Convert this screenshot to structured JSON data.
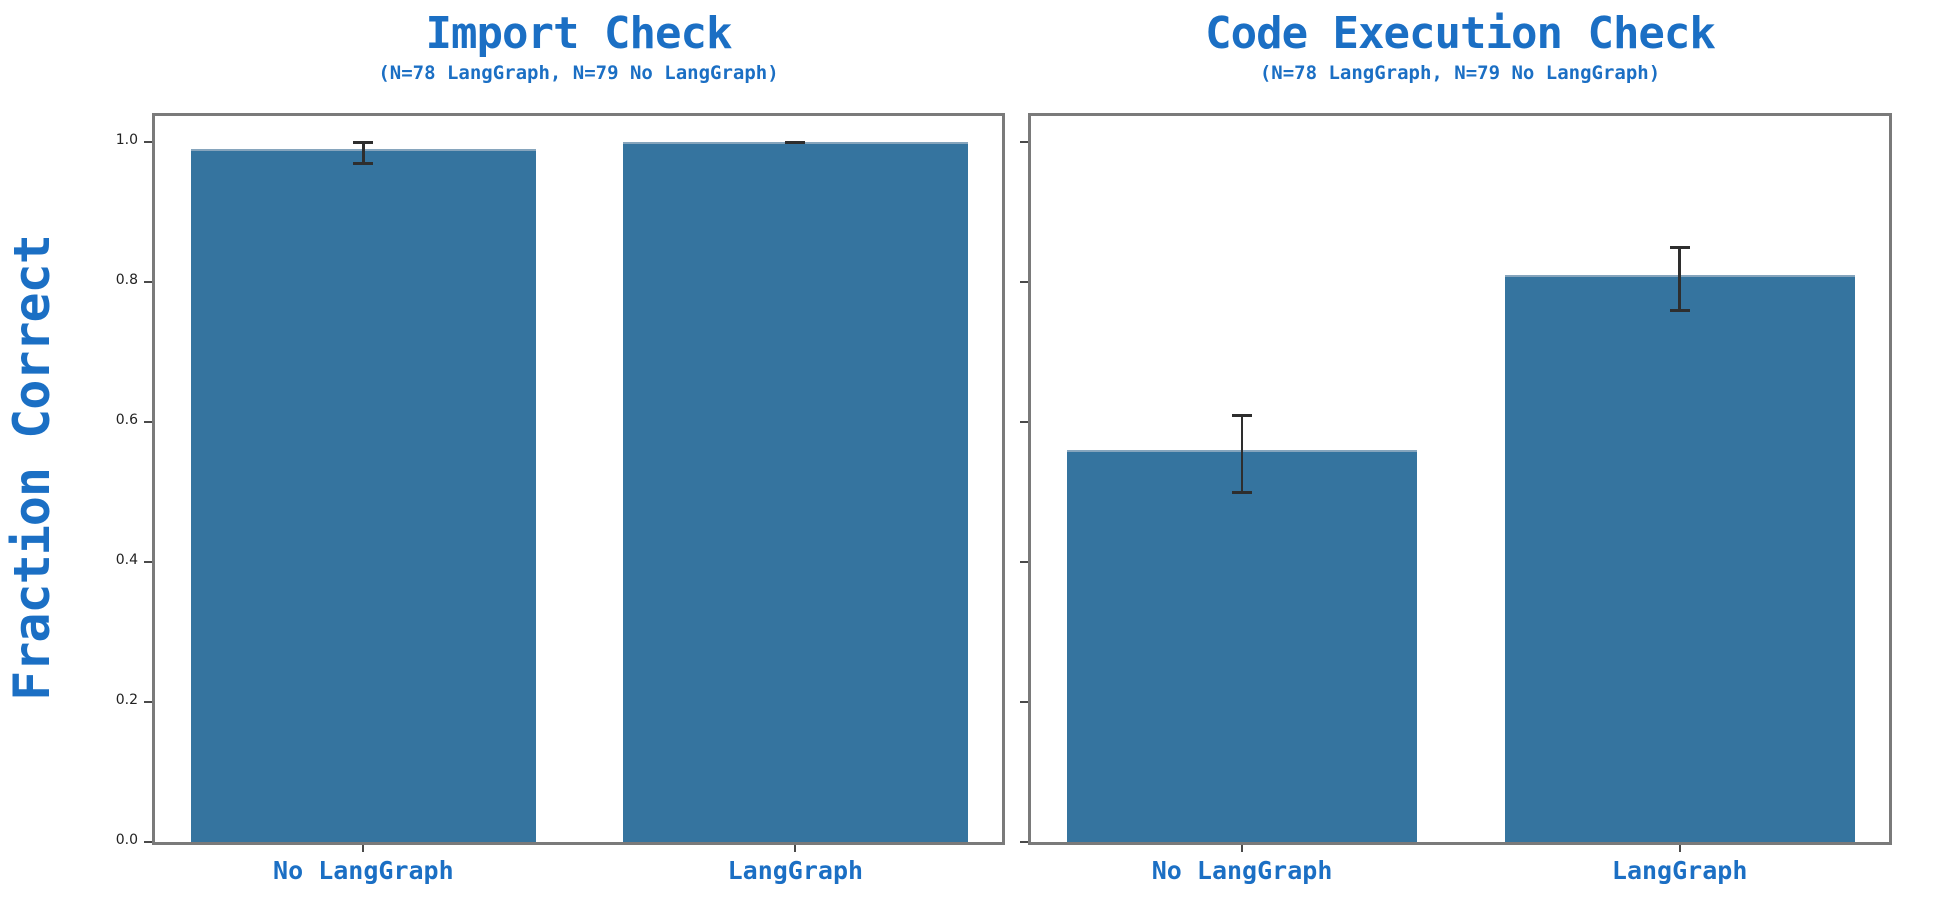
{
  "figure": {
    "ylabel": "Fraction Correct",
    "background": "#FFFFFF"
  },
  "colors": {
    "bar_fill": "#35749F",
    "bar_top_edge": "#86A5BD",
    "accent_blue": "#1B6FC4",
    "spine_gray": "#7A7A7A",
    "tick_mark": "#4A4A4A",
    "tick_label_text": "#222222",
    "error_bar": "#2E2E2E"
  },
  "axis": {
    "yticks": [
      "0.0",
      "0.2",
      "0.4",
      "0.6",
      "0.8",
      "1.0"
    ]
  },
  "chart_data": [
    {
      "type": "bar",
      "title": "Import Check",
      "subtitle": "(N=78 LangGraph, N=79 No LangGraph)",
      "categories": [
        "No LangGraph",
        "LangGraph"
      ],
      "values": [
        0.99,
        1.0
      ],
      "ci_low": [
        0.97,
        1.0
      ],
      "ci_high": [
        1.0,
        1.0
      ],
      "ylabel": "Fraction Correct",
      "ylim": [
        0,
        1.05
      ],
      "grid": false,
      "legend_position": "none"
    },
    {
      "type": "bar",
      "title": "Code Execution Check",
      "subtitle": "(N=78 LangGraph, N=79 No LangGraph)",
      "categories": [
        "No LangGraph",
        "LangGraph"
      ],
      "values": [
        0.56,
        0.81
      ],
      "ci_low": [
        0.5,
        0.76
      ],
      "ci_high": [
        0.61,
        0.85
      ],
      "ylabel": "Fraction Correct",
      "ylim": [
        0,
        1.05
      ],
      "grid": false,
      "legend_position": "none"
    }
  ]
}
